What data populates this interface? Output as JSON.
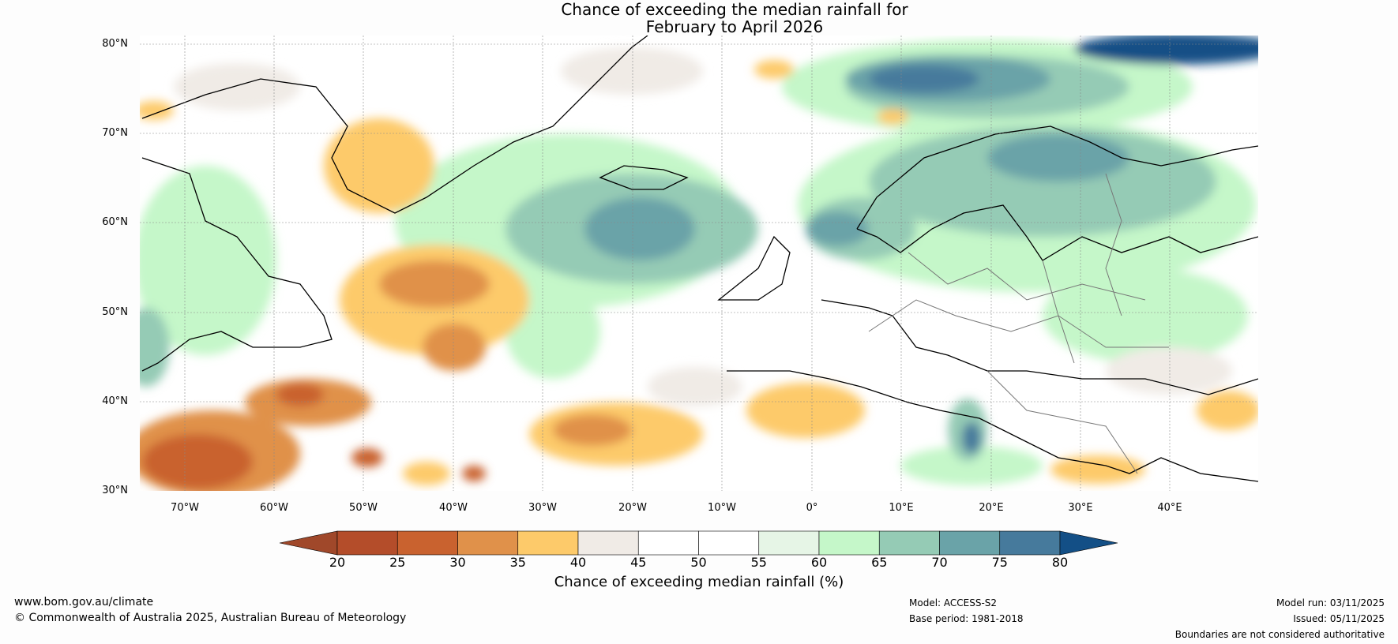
{
  "title_line1": "Chance of exceeding the median rainfall for",
  "title_line2": "February to April 2026",
  "lat_labels": [
    "80°N",
    "70°N",
    "60°N",
    "50°N",
    "40°N",
    "30°N"
  ],
  "lon_labels": [
    "70°W",
    "60°W",
    "50°W",
    "40°W",
    "30°W",
    "20°W",
    "10°W",
    "0°",
    "10°E",
    "20°E",
    "30°E",
    "40°E"
  ],
  "colorbar": {
    "ticks": [
      "20",
      "25",
      "30",
      "35",
      "40",
      "45",
      "50",
      "55",
      "60",
      "65",
      "70",
      "75",
      "80"
    ],
    "colors": [
      "#a0482a",
      "#b44d2a",
      "#c9622f",
      "#e0914a",
      "#fdca6a",
      "#f0ebe6",
      "#ffffff",
      "#ffffff",
      "#e6f5e6",
      "#c5f7c9",
      "#95cbb5",
      "#6aa3a8",
      "#467a9c",
      "#134f86"
    ],
    "label": "Chance of exceeding median rainfall (%)"
  },
  "footer": {
    "website": "www.bom.gov.au/climate",
    "copyright": "© Commonwealth of Australia 2025, Australian Bureau of Meteorology",
    "model": "Model: ACCESS-S2",
    "base_period": "Base period: 1981-2018",
    "model_run": "Model run: 03/11/2025",
    "issued": "Issued: 05/11/2025",
    "disclaimer": "Boundaries are not considered authoritative"
  }
}
